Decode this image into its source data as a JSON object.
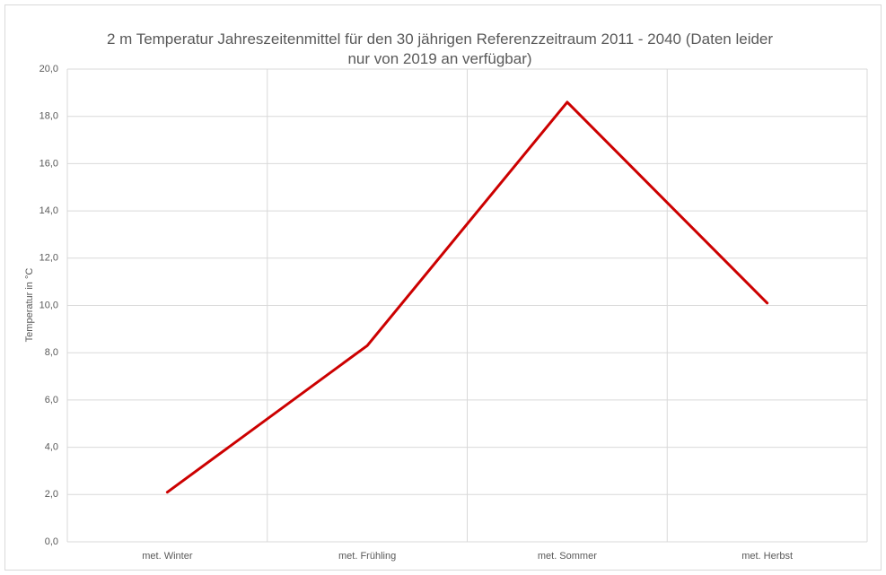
{
  "chart_data": {
    "type": "line",
    "title": "2 m Temperatur Jahreszeitenmittel für den 30 jährigen Referenzzeitraum 2011 - 2040 (Daten leider nur von 2019 an verfügbar)",
    "y_label": "Temperatur in °C",
    "categories": [
      "met. Winter",
      "met. Frühling",
      "met. Sommer",
      "met. Herbst"
    ],
    "values": [
      2.1,
      8.3,
      18.6,
      10.1
    ],
    "color": "#cc0000",
    "ylim": [
      0,
      20
    ],
    "yticks": [
      {
        "value": 0,
        "label": "0,0"
      },
      {
        "value": 2,
        "label": "2,0"
      },
      {
        "value": 4,
        "label": "4,0"
      },
      {
        "value": 6,
        "label": "6,0"
      },
      {
        "value": 8,
        "label": "8,0"
      },
      {
        "value": 10,
        "label": "10,0"
      },
      {
        "value": 12,
        "label": "12,0"
      },
      {
        "value": 14,
        "label": "14,0"
      },
      {
        "value": 16,
        "label": "16,0"
      },
      {
        "value": 18,
        "label": "18,0"
      },
      {
        "value": 20,
        "label": "20,0"
      }
    ],
    "grid": true
  }
}
